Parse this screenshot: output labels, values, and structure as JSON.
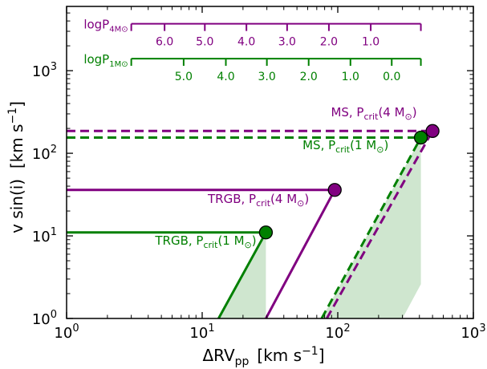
{
  "chart_data": {
    "type": "line",
    "xscale": "log",
    "yscale": "log",
    "xlim": [
      1,
      1000
    ],
    "ylim": [
      1,
      6000
    ],
    "xlabel": "ΔRV",
    "xlabel_sub": "pp",
    "xlabel_units": "[km s",
    "xlabel_units_sup": "−1",
    "xlabel_units_close": "]",
    "ylabel": "v sin(i)  [km s",
    "ylabel_sup": "−1",
    "ylabel_close": "]",
    "x_ticks": [
      {
        "value": 1,
        "mantissa": "10",
        "exp": "0"
      },
      {
        "value": 10,
        "mantissa": "10",
        "exp": "1"
      },
      {
        "value": 100,
        "mantissa": "10",
        "exp": "2"
      },
      {
        "value": 1000,
        "mantissa": "10",
        "exp": "3"
      }
    ],
    "y_ticks": [
      {
        "value": 1,
        "mantissa": "10",
        "exp": "0"
      },
      {
        "value": 10,
        "mantissa": "10",
        "exp": "1"
      },
      {
        "value": 100,
        "mantissa": "10",
        "exp": "2"
      },
      {
        "value": 1000,
        "mantissa": "10",
        "exp": "3"
      }
    ],
    "colors": {
      "purple": "#800080",
      "green": "#008000",
      "shade": "#cfe6cf"
    },
    "shaded_regions": [
      {
        "points": [
          [
            13.2,
            1
          ],
          [
            29.5,
            11
          ],
          [
            29.5,
            1
          ]
        ]
      },
      {
        "points": [
          [
            76,
            1
          ],
          [
            410,
            155
          ],
          [
            410,
            2.6
          ],
          [
            300,
            1
          ]
        ]
      }
    ],
    "series": [
      {
        "color": "purple",
        "style": "solid",
        "points": [
          [
            1,
            36
          ],
          [
            95,
            36
          ]
        ]
      },
      {
        "color": "purple",
        "style": "solid",
        "points": [
          [
            29.5,
            1
          ],
          [
            95,
            36
          ]
        ]
      },
      {
        "color": "green",
        "style": "solid",
        "points": [
          [
            1,
            11
          ],
          [
            29.5,
            11
          ]
        ]
      },
      {
        "color": "green",
        "style": "solid",
        "points": [
          [
            13.2,
            1
          ],
          [
            29.5,
            11
          ]
        ]
      },
      {
        "color": "purple",
        "style": "dashed",
        "points": [
          [
            1,
            186
          ],
          [
            500,
            186
          ]
        ]
      },
      {
        "color": "purple",
        "style": "dashed",
        "points": [
          [
            83,
            1
          ],
          [
            500,
            186
          ]
        ]
      },
      {
        "color": "green",
        "style": "dashed",
        "points": [
          [
            1,
            155
          ],
          [
            410,
            155
          ]
        ]
      },
      {
        "color": "green",
        "style": "dashed",
        "points": [
          [
            76,
            1
          ],
          [
            410,
            155
          ]
        ]
      }
    ],
    "markers": [
      {
        "x": 95,
        "y": 36,
        "color": "purple"
      },
      {
        "x": 29.5,
        "y": 11,
        "color": "green"
      },
      {
        "x": 500,
        "y": 186,
        "color": "purple"
      },
      {
        "x": 410,
        "y": 155,
        "color": "green"
      }
    ],
    "annotations": [
      {
        "id": "ms4",
        "color": "purple",
        "x": 89,
        "y": 280,
        "anchor": "start",
        "pre": "MS, P",
        "sub": "crit",
        "post": "(4 M",
        "sym": "⊙",
        "close": ")"
      },
      {
        "id": "ms1",
        "color": "green",
        "x": 55,
        "y": 112,
        "anchor": "start",
        "pre": "MS, P",
        "sub": "crit",
        "post": "(1 M",
        "sym": "⊙",
        "close": ")"
      },
      {
        "id": "trgb4",
        "color": "purple",
        "x": 11,
        "y": 25,
        "anchor": "start",
        "pre": "TRGB, P",
        "sub": "crit",
        "post": "(4 M",
        "sym": "⊙",
        "close": ")"
      },
      {
        "id": "trgb1",
        "color": "green",
        "x": 4.5,
        "y": 7.8,
        "anchor": "start",
        "pre": "TRGB, P",
        "sub": "crit",
        "post": "(1 M",
        "sym": "⊙",
        "close": ")"
      }
    ],
    "period_scales": [
      {
        "id": "p4",
        "color": "purple",
        "y": 3700,
        "x_start": 3,
        "x_end": 410,
        "label_main": "logP",
        "label_sub": "4M",
        "label_sub_sym": "⊙",
        "ticks": [
          {
            "x": 3,
            "label": ""
          },
          {
            "x": 5.28,
            "label": "6.0"
          },
          {
            "x": 10.46,
            "label": "5.0"
          },
          {
            "x": 21.2,
            "label": "4.0"
          },
          {
            "x": 42.3,
            "label": "3.0"
          },
          {
            "x": 86.0,
            "label": "2.0"
          },
          {
            "x": 175,
            "label": "1.0"
          },
          {
            "x": 410,
            "label": ""
          }
        ]
      },
      {
        "id": "p1",
        "color": "green",
        "y": 1400,
        "x_start": 3,
        "x_end": 410,
        "label_main": "logP",
        "label_sub": "1M",
        "label_sub_sym": "⊙",
        "ticks": [
          {
            "x": 3,
            "label": ""
          },
          {
            "x": 7.3,
            "label": "5.0"
          },
          {
            "x": 14.95,
            "label": "4.0"
          },
          {
            "x": 30.0,
            "label": "3.0"
          },
          {
            "x": 61.0,
            "label": "2.0"
          },
          {
            "x": 124.0,
            "label": "1.0"
          },
          {
            "x": 250.0,
            "label": "0.0"
          },
          {
            "x": 410,
            "label": ""
          }
        ]
      }
    ],
    "grid": false,
    "legend": "none"
  }
}
